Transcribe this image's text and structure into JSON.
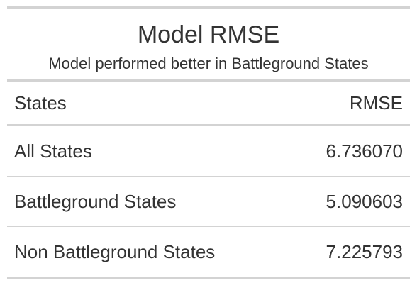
{
  "table": {
    "title": "Model RMSE",
    "subtitle": "Model performed better in Battleground States",
    "columns": [
      "States",
      "RMSE"
    ],
    "rows": [
      {
        "states": "All States",
        "rmse": "6.736070"
      },
      {
        "states": "Battleground States",
        "rmse": "5.090603"
      },
      {
        "states": "Non Battleground States",
        "rmse": "7.225793"
      }
    ]
  },
  "colors": {
    "text": "#333333",
    "rule": "#d3d3d3",
    "background": "#ffffff"
  }
}
